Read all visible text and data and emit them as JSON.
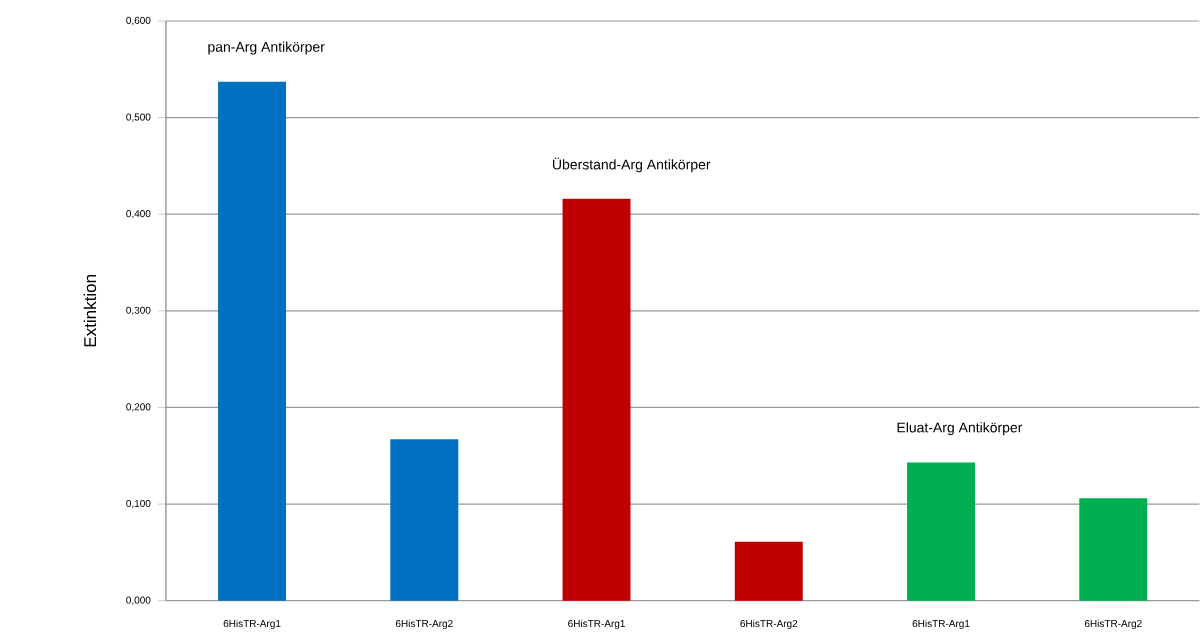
{
  "chart_data": {
    "type": "bar",
    "ylabel": "Extinktion",
    "categories": [
      "6HisTR-Arg1",
      "6HisTR-Arg2",
      "6HisTR-Arg1",
      "6HisTR-Arg2",
      "6HisTR-Arg1",
      "6HisTR-Arg2"
    ],
    "values": [
      0.537,
      0.167,
      0.416,
      0.061,
      0.143,
      0.106
    ],
    "colors": [
      "#0070c0",
      "#0070c0",
      "#c00000",
      "#c00000",
      "#00b050",
      "#00b050"
    ],
    "ylim": [
      0,
      0.6
    ],
    "yticks": [
      {
        "value": 0,
        "label": "0,000"
      },
      {
        "value": 0.1,
        "label": "0,100"
      },
      {
        "value": 0.2,
        "label": "0,200"
      },
      {
        "value": 0.3,
        "label": "0,300"
      },
      {
        "value": 0.4,
        "label": "0,400"
      },
      {
        "value": 0.5,
        "label": "0,500"
      },
      {
        "value": 0.6,
        "label": "0,600"
      }
    ],
    "annotations": [
      "pan-Arg Antikörper",
      "Überstand-Arg Antikörper",
      "Eluat-Arg Antikörper"
    ],
    "grid": "y"
  }
}
